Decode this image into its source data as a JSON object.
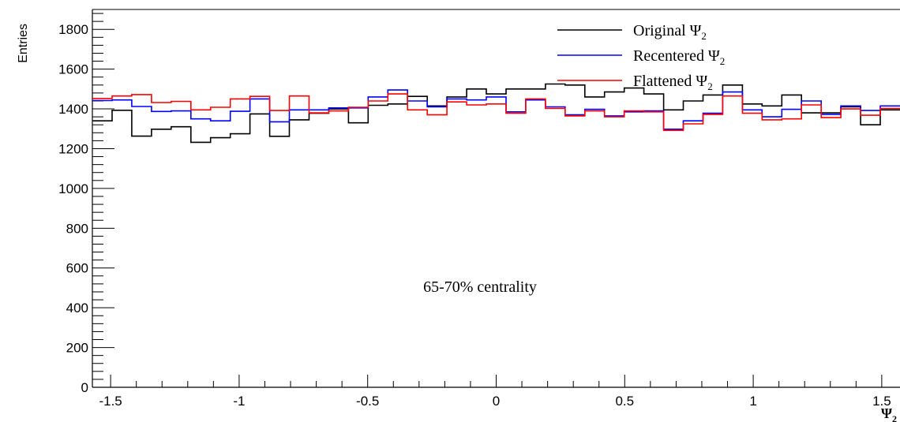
{
  "chart_data": {
    "type": "line",
    "style": "step-histogram",
    "ylabel": "Entries",
    "xlabel": "Ψ",
    "xlabel_sub": "2",
    "xlim": [
      -1.571,
      1.571
    ],
    "ylim": [
      0,
      1900
    ],
    "x_ticks": [
      -1.5,
      -1,
      -0.5,
      0,
      0.5,
      1,
      1.5
    ],
    "x_tick_labels": [
      "-1.5",
      "-1",
      "-0.5",
      "0",
      "0.5",
      "1",
      "1.5"
    ],
    "y_ticks": [
      0,
      200,
      400,
      600,
      800,
      1000,
      1200,
      1400,
      1600,
      1800
    ],
    "y_tick_labels": [
      "0",
      "200",
      "400",
      "600",
      "800",
      "1000",
      "1200",
      "1400",
      "1600",
      "1800"
    ],
    "grid": false,
    "legend_position": "top-right",
    "annotation": "65-70% centrality",
    "bin_edges_count": 41,
    "series": [
      {
        "name": "Original Ψ",
        "name_sub": "2",
        "color": "#000000",
        "values": [
          1340,
          1393,
          1263,
          1298,
          1310,
          1232,
          1255,
          1275,
          1375,
          1262,
          1345,
          1378,
          1400,
          1330,
          1418,
          1425,
          1463,
          1415,
          1460,
          1500,
          1475,
          1500,
          1500,
          1525,
          1520,
          1460,
          1485,
          1505,
          1475,
          1395,
          1440,
          1470,
          1520,
          1425,
          1415,
          1470,
          1380,
          1380,
          1410,
          1320,
          1395
        ]
      },
      {
        "name": "Recentered Ψ",
        "name_sub": "2",
        "color": "#0000ff",
        "values": [
          1442,
          1445,
          1412,
          1387,
          1390,
          1350,
          1340,
          1388,
          1450,
          1335,
          1395,
          1395,
          1405,
          1405,
          1460,
          1495,
          1440,
          1410,
          1450,
          1445,
          1460,
          1385,
          1445,
          1410,
          1370,
          1398,
          1365,
          1385,
          1390,
          1298,
          1340,
          1378,
          1485,
          1395,
          1360,
          1398,
          1440,
          1372,
          1415,
          1392,
          1415
        ]
      },
      {
        "name": "Flattened Ψ",
        "name_sub": "2",
        "color": "#ff0000",
        "values": [
          1452,
          1465,
          1472,
          1432,
          1438,
          1395,
          1408,
          1450,
          1463,
          1392,
          1465,
          1380,
          1390,
          1408,
          1440,
          1475,
          1395,
          1370,
          1435,
          1420,
          1425,
          1378,
          1450,
          1402,
          1365,
          1390,
          1360,
          1390,
          1385,
          1292,
          1325,
          1372,
          1465,
          1378,
          1345,
          1350,
          1420,
          1356,
          1400,
          1368,
          1402
        ]
      }
    ]
  }
}
